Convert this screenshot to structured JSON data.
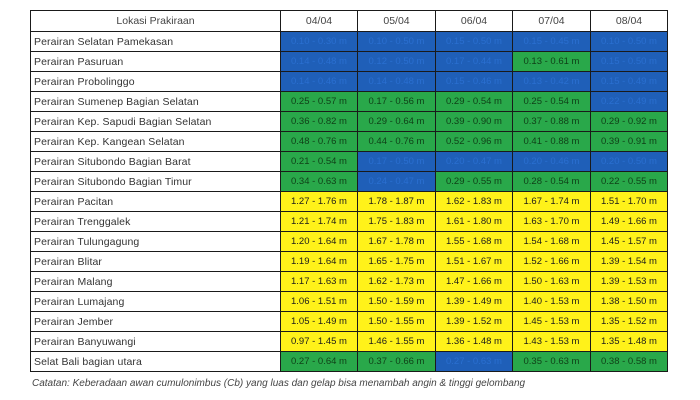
{
  "table": {
    "location_header": "Lokasi Prakiraan",
    "dates": [
      "04/04",
      "05/04",
      "06/04",
      "07/04",
      "08/04"
    ],
    "colors": {
      "blue": "#1f5fb8",
      "green": "#29a84a",
      "yellow": "#fff21a"
    },
    "rows": [
      {
        "location": "Perairan Selatan Pamekasan",
        "cells": [
          {
            "value": "0.10 - 0.30 m",
            "category": "blue"
          },
          {
            "value": "0.10 - 0.50 m",
            "category": "blue"
          },
          {
            "value": "0.15 - 0.50 m",
            "category": "blue"
          },
          {
            "value": "0.15 - 0.45 m",
            "category": "blue"
          },
          {
            "value": "0.10 - 0.50 m",
            "category": "blue"
          }
        ]
      },
      {
        "location": "Perairan Pasuruan",
        "cells": [
          {
            "value": "0.14 - 0.48 m",
            "category": "blue"
          },
          {
            "value": "0.12 - 0.50 m",
            "category": "blue"
          },
          {
            "value": "0.17 - 0.44 m",
            "category": "blue"
          },
          {
            "value": "0.13 - 0.61 m",
            "category": "green"
          },
          {
            "value": "0.15 - 0.50 m",
            "category": "blue"
          }
        ]
      },
      {
        "location": "Perairan Probolinggo",
        "cells": [
          {
            "value": "0.14 - 0.46 m",
            "category": "blue"
          },
          {
            "value": "0.14 - 0.48 m",
            "category": "blue"
          },
          {
            "value": "0.15 - 0.46 m",
            "category": "blue"
          },
          {
            "value": "0.13 - 0.42 m",
            "category": "blue"
          },
          {
            "value": "0.15 - 0.49 m",
            "category": "blue"
          }
        ]
      },
      {
        "location": "Perairan Sumenep Bagian Selatan",
        "cells": [
          {
            "value": "0.25 - 0.57 m",
            "category": "green"
          },
          {
            "value": "0.17 - 0.56 m",
            "category": "green"
          },
          {
            "value": "0.29 - 0.54 m",
            "category": "green"
          },
          {
            "value": "0.25 - 0.54 m",
            "category": "green"
          },
          {
            "value": "0.22 - 0.49 m",
            "category": "blue"
          }
        ]
      },
      {
        "location": "Perairan Kep. Sapudi Bagian Selatan",
        "cells": [
          {
            "value": "0.36 - 0.82 m",
            "category": "green"
          },
          {
            "value": "0.29 - 0.64 m",
            "category": "green"
          },
          {
            "value": "0.39 - 0.90 m",
            "category": "green"
          },
          {
            "value": "0.37 - 0.88 m",
            "category": "green"
          },
          {
            "value": "0.29 - 0.92 m",
            "category": "green"
          }
        ]
      },
      {
        "location": "Perairan Kep. Kangean Selatan",
        "cells": [
          {
            "value": "0.48 - 0.76 m",
            "category": "green"
          },
          {
            "value": "0.44 - 0.76 m",
            "category": "green"
          },
          {
            "value": "0.52 - 0.96 m",
            "category": "green"
          },
          {
            "value": "0.41 - 0.88 m",
            "category": "green"
          },
          {
            "value": "0.39 - 0.91 m",
            "category": "green"
          }
        ]
      },
      {
        "location": "Perairan Situbondo Bagian Barat",
        "cells": [
          {
            "value": "0.21 - 0.54 m",
            "category": "green"
          },
          {
            "value": "0.17 - 0.50 m",
            "category": "blue"
          },
          {
            "value": "0.20 - 0.47 m",
            "category": "blue"
          },
          {
            "value": "0.20 - 0.46 m",
            "category": "blue"
          },
          {
            "value": "0.20 - 0.50 m",
            "category": "blue"
          }
        ]
      },
      {
        "location": "Perairan Situbondo Bagian Timur",
        "cells": [
          {
            "value": "0.34 - 0.63 m",
            "category": "green"
          },
          {
            "value": "0.24 - 0.47 m",
            "category": "blue"
          },
          {
            "value": "0.29 - 0.55 m",
            "category": "green"
          },
          {
            "value": "0.28 - 0.54 m",
            "category": "green"
          },
          {
            "value": "0.22 - 0.55 m",
            "category": "green"
          }
        ]
      },
      {
        "location": "Perairan Pacitan",
        "cells": [
          {
            "value": "1.27 - 1.76 m",
            "category": "yellow"
          },
          {
            "value": "1.78 - 1.87 m",
            "category": "yellow"
          },
          {
            "value": "1.62 - 1.83 m",
            "category": "yellow"
          },
          {
            "value": "1.67 - 1.74 m",
            "category": "yellow"
          },
          {
            "value": "1.51 - 1.70 m",
            "category": "yellow"
          }
        ]
      },
      {
        "location": "Perairan Trenggalek",
        "cells": [
          {
            "value": "1.21 - 1.74 m",
            "category": "yellow"
          },
          {
            "value": "1.75 - 1.83 m",
            "category": "yellow"
          },
          {
            "value": "1.61 - 1.80 m",
            "category": "yellow"
          },
          {
            "value": "1.63 - 1.70 m",
            "category": "yellow"
          },
          {
            "value": "1.49 - 1.66 m",
            "category": "yellow"
          }
        ]
      },
      {
        "location": "Perairan Tulungagung",
        "cells": [
          {
            "value": "1.20 - 1.64 m",
            "category": "yellow"
          },
          {
            "value": "1.67 - 1.78 m",
            "category": "yellow"
          },
          {
            "value": "1.55 - 1.68 m",
            "category": "yellow"
          },
          {
            "value": "1.54 - 1.68 m",
            "category": "yellow"
          },
          {
            "value": "1.45 - 1.57 m",
            "category": "yellow"
          }
        ]
      },
      {
        "location": "Perairan Blitar",
        "cells": [
          {
            "value": "1.19 - 1.64 m",
            "category": "yellow"
          },
          {
            "value": "1.65 - 1.75 m",
            "category": "yellow"
          },
          {
            "value": "1.51 - 1.67 m",
            "category": "yellow"
          },
          {
            "value": "1.52 - 1.66 m",
            "category": "yellow"
          },
          {
            "value": "1.39 - 1.54 m",
            "category": "yellow"
          }
        ]
      },
      {
        "location": "Perairan Malang",
        "cells": [
          {
            "value": "1.17 - 1.63 m",
            "category": "yellow"
          },
          {
            "value": "1.62 - 1.73 m",
            "category": "yellow"
          },
          {
            "value": "1.47 - 1.66 m",
            "category": "yellow"
          },
          {
            "value": "1.50 - 1.63 m",
            "category": "yellow"
          },
          {
            "value": "1.39 - 1.53 m",
            "category": "yellow"
          }
        ]
      },
      {
        "location": "Perairan Lumajang",
        "cells": [
          {
            "value": "1.06 - 1.51 m",
            "category": "yellow"
          },
          {
            "value": "1.50 - 1.59 m",
            "category": "yellow"
          },
          {
            "value": "1.39 - 1.49 m",
            "category": "yellow"
          },
          {
            "value": "1.40 - 1.53 m",
            "category": "yellow"
          },
          {
            "value": "1.38 - 1.50 m",
            "category": "yellow"
          }
        ]
      },
      {
        "location": "Perairan Jember",
        "cells": [
          {
            "value": "1.05 - 1.49 m",
            "category": "yellow"
          },
          {
            "value": "1.50 - 1.55 m",
            "category": "yellow"
          },
          {
            "value": "1.39 - 1.52 m",
            "category": "yellow"
          },
          {
            "value": "1.45 - 1.53 m",
            "category": "yellow"
          },
          {
            "value": "1.35 - 1.52 m",
            "category": "yellow"
          }
        ]
      },
      {
        "location": "Perairan Banyuwangi",
        "cells": [
          {
            "value": "0.97 - 1.45 m",
            "category": "yellow"
          },
          {
            "value": "1.46 - 1.55 m",
            "category": "yellow"
          },
          {
            "value": "1.36 - 1.48 m",
            "category": "yellow"
          },
          {
            "value": "1.43 - 1.53 m",
            "category": "yellow"
          },
          {
            "value": "1.35 - 1.48 m",
            "category": "yellow"
          }
        ]
      },
      {
        "location": "Selat Bali bagian utara",
        "cells": [
          {
            "value": "0.27 - 0.64 m",
            "category": "green"
          },
          {
            "value": "0.37 - 0.66 m",
            "category": "green"
          },
          {
            "value": "0.27 - 0.63 m",
            "category": "blue"
          },
          {
            "value": "0.35 - 0.63 m",
            "category": "green"
          },
          {
            "value": "0.38 - 0.58 m",
            "category": "green"
          }
        ]
      }
    ]
  },
  "footnote": "Catatan: Keberadaan awan cumulonimbus (Cb) yang luas dan gelap bisa menambah angin & tinggi gelombang"
}
